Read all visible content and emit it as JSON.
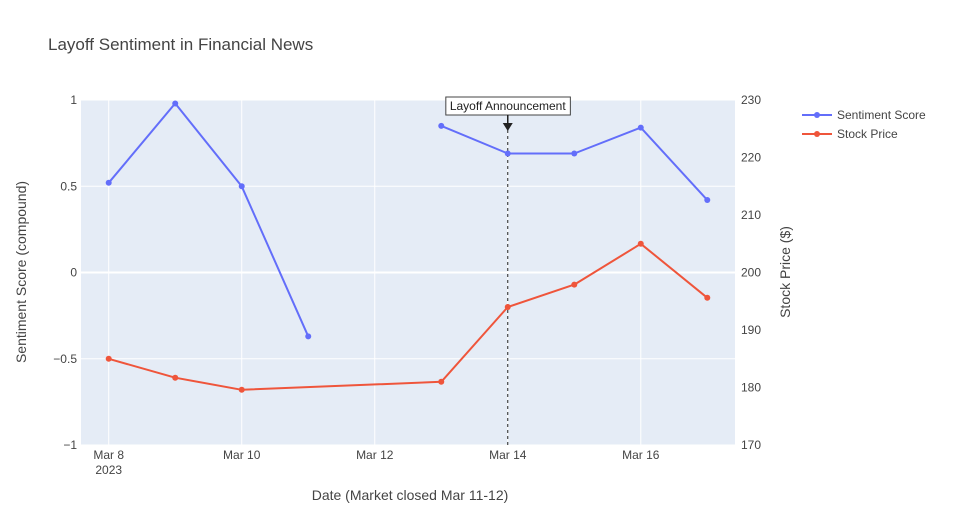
{
  "chart_data": {
    "type": "line",
    "title": "Layoff Sentiment in Financial News",
    "xlabel": "Date (Market closed Mar 11-12)",
    "ylabel": "Sentiment Score (compound)",
    "y2label": "Stock Price ($)",
    "x_range": [
      "2023-03-07T14:00",
      "2023-03-17T10:00"
    ],
    "x_ticks": [
      {
        "date": "2023-03-08",
        "label": "Mar 8",
        "sublabel": "2023"
      },
      {
        "date": "2023-03-10",
        "label": "Mar 10"
      },
      {
        "date": "2023-03-12",
        "label": "Mar 12"
      },
      {
        "date": "2023-03-14",
        "label": "Mar 14"
      },
      {
        "date": "2023-03-16",
        "label": "Mar 16"
      }
    ],
    "ylim": [
      -1,
      1
    ],
    "y_ticks": [
      {
        "value": -1,
        "label": "−1"
      },
      {
        "value": -0.5,
        "label": "−0.5"
      },
      {
        "value": 0,
        "label": "0"
      },
      {
        "value": 0.5,
        "label": "0.5"
      },
      {
        "value": 1,
        "label": "1"
      }
    ],
    "y2lim": [
      170,
      230
    ],
    "y2_ticks": [
      {
        "value": 170,
        "label": "170"
      },
      {
        "value": 180,
        "label": "180"
      },
      {
        "value": 190,
        "label": "190"
      },
      {
        "value": 200,
        "label": "200"
      },
      {
        "value": 210,
        "label": "210"
      },
      {
        "value": 220,
        "label": "220"
      },
      {
        "value": 230,
        "label": "230"
      }
    ],
    "grid": true,
    "legend_position": "top-right",
    "series": [
      {
        "name": "Sentiment Score",
        "axis": "y",
        "color": "#636efa",
        "points": [
          {
            "x": "2023-03-08",
            "y": 0.52
          },
          {
            "x": "2023-03-09",
            "y": 0.98
          },
          {
            "x": "2023-03-10",
            "y": 0.5
          },
          {
            "x": "2023-03-11",
            "y": -0.37
          },
          {
            "x": "2023-03-12",
            "y": null
          },
          {
            "x": "2023-03-13",
            "y": 0.85
          },
          {
            "x": "2023-03-14",
            "y": 0.69
          },
          {
            "x": "2023-03-15",
            "y": 0.69
          },
          {
            "x": "2023-03-16",
            "y": 0.84
          },
          {
            "x": "2023-03-17",
            "y": 0.42
          }
        ]
      },
      {
        "name": "Stock Price",
        "axis": "y2",
        "color": "#ef553b",
        "points": [
          {
            "x": "2023-03-08",
            "y": 185.0
          },
          {
            "x": "2023-03-09",
            "y": 181.7
          },
          {
            "x": "2023-03-10",
            "y": 179.6
          },
          {
            "x": "2023-03-13",
            "y": 181.0
          },
          {
            "x": "2023-03-14",
            "y": 194.0
          },
          {
            "x": "2023-03-15",
            "y": 197.9
          },
          {
            "x": "2023-03-16",
            "y": 205.0
          },
          {
            "x": "2023-03-17",
            "y": 195.6
          }
        ]
      }
    ],
    "annotations": [
      {
        "x": "2023-03-14",
        "text": "Layoff Announcement",
        "vline": true
      }
    ]
  }
}
